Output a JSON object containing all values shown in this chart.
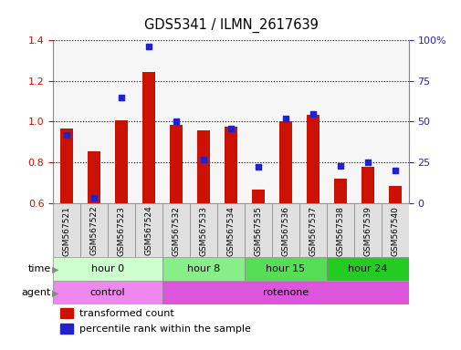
{
  "title": "GDS5341 / ILMN_2617639",
  "samples": [
    "GSM567521",
    "GSM567522",
    "GSM567523",
    "GSM567524",
    "GSM567532",
    "GSM567533",
    "GSM567534",
    "GSM567535",
    "GSM567536",
    "GSM567537",
    "GSM567538",
    "GSM567539",
    "GSM567540"
  ],
  "transformed_count": [
    0.965,
    0.855,
    1.005,
    1.245,
    0.985,
    0.955,
    0.975,
    0.665,
    1.0,
    1.035,
    0.72,
    0.78,
    0.685
  ],
  "percentile_rank": [
    42,
    3,
    65,
    96,
    50,
    27,
    46,
    22,
    52,
    55,
    23,
    25,
    20
  ],
  "ymin": 0.6,
  "ymax": 1.4,
  "y2min": 0,
  "y2max": 100,
  "yticks": [
    0.6,
    0.8,
    1.0,
    1.2,
    1.4
  ],
  "y2ticks": [
    0,
    25,
    50,
    75,
    100
  ],
  "y2ticklabels": [
    "0",
    "25",
    "50",
    "75",
    "100%"
  ],
  "bar_color": "#cc1100",
  "dot_color": "#2222cc",
  "bar_width": 0.45,
  "time_groups": [
    {
      "label": "hour 0",
      "start": 0,
      "end": 3,
      "color": "#ccffcc"
    },
    {
      "label": "hour 8",
      "start": 4,
      "end": 6,
      "color": "#88ee88"
    },
    {
      "label": "hour 15",
      "start": 7,
      "end": 9,
      "color": "#55dd55"
    },
    {
      "label": "hour 24",
      "start": 10,
      "end": 12,
      "color": "#22cc22"
    }
  ],
  "agent_groups": [
    {
      "label": "control",
      "start": 0,
      "end": 3,
      "color": "#ee88ee"
    },
    {
      "label": "rotenone",
      "start": 4,
      "end": 12,
      "color": "#dd55dd"
    }
  ],
  "legend_red": "transformed count",
  "legend_blue": "percentile rank within the sample",
  "tick_color_left": "#cc1100",
  "tick_color_right": "#2222cc",
  "bar_bottom": 0.6,
  "col_bg_color": "#e8e8e8",
  "border_color": "#888888"
}
